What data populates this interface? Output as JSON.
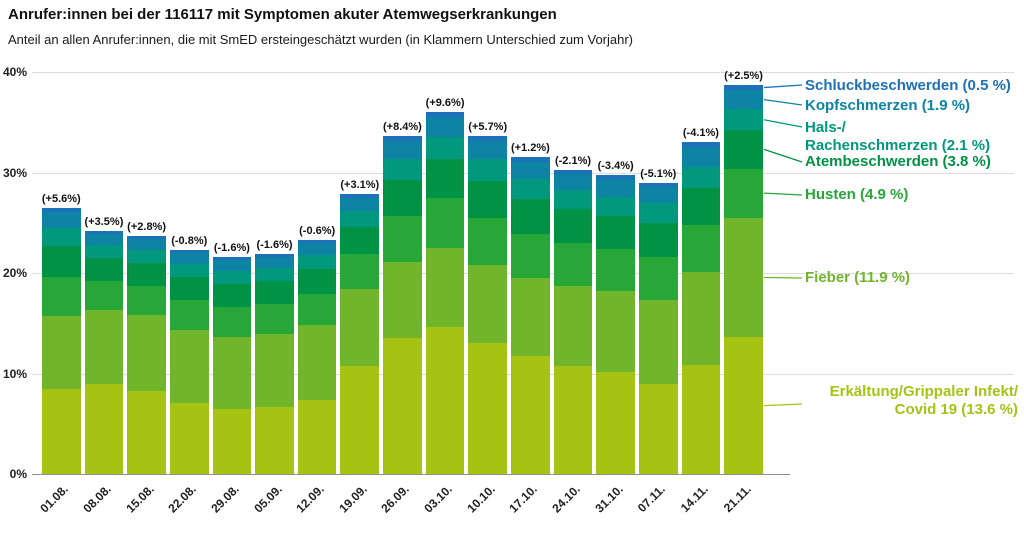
{
  "chart_data": {
    "type": "bar",
    "stacked": true,
    "title": "Anrufer:innen bei der 116117 mit Symptomen akuter Atemwegserkrankungen",
    "subtitle": "Anteil an allen Anrufer:innen, die mit SmED ersteingeschätzt wurden (in Klammern Unterschied zum Vorjahr)",
    "categories": [
      "01.08.",
      "08.08.",
      "15.08.",
      "22.08.",
      "29.08.",
      "05.09.",
      "12.09.",
      "19.09.",
      "26.09.",
      "03.10.",
      "10.10.",
      "17.10.",
      "24.10.",
      "31.10.",
      "07.11.",
      "14.11.",
      "21.11."
    ],
    "bar_annotations": [
      "(+5.6%)",
      "(+3.5%)",
      "(+2.8%)",
      "(-0.8%)",
      "(-1.6%)",
      "(-1.6%)",
      "(-0.6%)",
      "(+3.1%)",
      "(+8.4%)",
      "(+9.6%)",
      "(+5.7%)",
      "(+1.2%)",
      "(-2.1%)",
      "(-3.4%)",
      "(-5.1%)",
      "(-4.1%)",
      "(+2.5%)"
    ],
    "series": [
      {
        "id": "erkaeltung-covid19",
        "name": "Erkältung/Grippaler Infekt/Covid 19",
        "color": "#a6c313",
        "values": [
          8.5,
          9.0,
          8.3,
          7.1,
          6.5,
          6.7,
          7.4,
          10.7,
          13.5,
          14.6,
          13.0,
          11.7,
          10.7,
          10.2,
          9.0,
          10.8,
          13.6
        ]
      },
      {
        "id": "fieber",
        "name": "Fieber",
        "color": "#70b52b",
        "values": [
          7.2,
          7.3,
          7.5,
          7.2,
          7.1,
          7.2,
          7.4,
          7.7,
          7.6,
          7.9,
          7.8,
          7.8,
          8.0,
          8.0,
          8.3,
          9.3,
          11.9
        ]
      },
      {
        "id": "husten",
        "name": "Husten",
        "color": "#27a737",
        "values": [
          3.9,
          2.9,
          2.9,
          3.0,
          3.0,
          3.0,
          3.1,
          3.5,
          4.6,
          5.0,
          4.7,
          4.4,
          4.3,
          4.2,
          4.3,
          4.7,
          4.9
        ]
      },
      {
        "id": "atembeschwerden",
        "name": "Atembeschwerden",
        "color": "#009245",
        "values": [
          3.1,
          2.3,
          2.3,
          2.3,
          2.3,
          2.3,
          2.5,
          2.7,
          3.6,
          3.8,
          3.7,
          3.5,
          3.4,
          3.3,
          3.4,
          3.7,
          3.8
        ]
      },
      {
        "id": "hals-rachenschmerzen",
        "name": "Hals-/Rachenschmerzen",
        "color": "#00997d",
        "values": [
          1.8,
          1.3,
          1.3,
          1.3,
          1.3,
          1.3,
          1.4,
          1.6,
          2.0,
          2.2,
          2.1,
          2.0,
          1.9,
          1.9,
          2.0,
          2.1,
          2.1
        ]
      },
      {
        "id": "kopfschmerzen",
        "name": "Kopfschmerzen",
        "color": "#0d84a4",
        "values": [
          1.6,
          1.1,
          1.1,
          1.1,
          1.1,
          1.1,
          1.2,
          1.3,
          1.8,
          2.0,
          1.8,
          1.6,
          1.6,
          1.8,
          1.6,
          1.9,
          1.9
        ]
      },
      {
        "id": "schluckbeschwerden",
        "name": "Schluckbeschwerden",
        "color": "#1d71b8",
        "values": [
          0.4,
          0.3,
          0.3,
          0.3,
          0.3,
          0.3,
          0.3,
          0.4,
          0.5,
          0.5,
          0.5,
          0.5,
          0.4,
          0.4,
          0.4,
          0.5,
          0.5
        ]
      }
    ],
    "legend_position": "right",
    "legend": [
      {
        "id": "schluckbeschwerden",
        "lines": [
          "Schluckbeschwerden (0.5 %)"
        ],
        "color": "#1d71b8"
      },
      {
        "id": "kopfschmerzen",
        "lines": [
          "Kopfschmerzen (1.9 %)"
        ],
        "color": "#0d84a4"
      },
      {
        "id": "hals-rachenschmerzen",
        "lines": [
          "Hals-/",
          "Rachenschmerzen (2.1 %)"
        ],
        "color": "#00997d"
      },
      {
        "id": "atembeschwerden",
        "lines": [
          "Atembeschwerden (3.8 %)"
        ],
        "color": "#009245"
      },
      {
        "id": "husten",
        "lines": [
          "Husten (4.9 %)"
        ],
        "color": "#27a737"
      },
      {
        "id": "fieber",
        "lines": [
          "Fieber (11.9 %)"
        ],
        "color": "#70b52b"
      },
      {
        "id": "erkaeltung-covid19",
        "lines": [
          "Erkältung/Grippaler Infekt/",
          "Covid 19 (13.6 %)"
        ],
        "color": "#a6c313"
      }
    ],
    "xlabel": "",
    "ylabel": "",
    "ylim": [
      0,
      40
    ],
    "yticks": [
      "0%",
      "10%",
      "20%",
      "30%",
      "40%"
    ],
    "grid": "horizontal"
  }
}
